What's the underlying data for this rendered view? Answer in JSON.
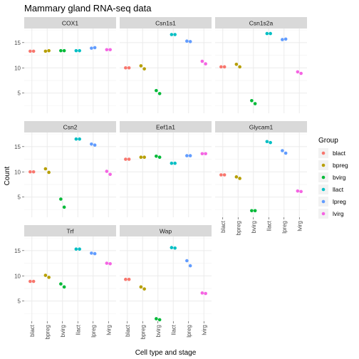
{
  "chart_data": {
    "type": "scatter",
    "title": "Mammary gland RNA-seq data",
    "xlabel": "Cell type and stage",
    "ylabel": "Count",
    "categories": [
      "blact",
      "bpreg",
      "bvirg",
      "llact",
      "lpreg",
      "lvirg"
    ],
    "yticks": [
      5,
      10,
      15
    ],
    "ylim": [
      1.0,
      17.8
    ],
    "grid": true,
    "legend": {
      "title": "Group",
      "position": "right",
      "entries": [
        {
          "name": "blact",
          "color": "#F8766D"
        },
        {
          "name": "bpreg",
          "color": "#B79F00"
        },
        {
          "name": "bvirg",
          "color": "#00BA38"
        },
        {
          "name": "llact",
          "color": "#00BFC4"
        },
        {
          "name": "lpreg",
          "color": "#619CFF"
        },
        {
          "name": "lvirg",
          "color": "#F564E3"
        }
      ]
    },
    "panels": [
      {
        "name": "COX1",
        "points": [
          {
            "g": "blact",
            "y": 13.3
          },
          {
            "g": "blact",
            "y": 13.3
          },
          {
            "g": "bpreg",
            "y": 13.3
          },
          {
            "g": "bpreg",
            "y": 13.4
          },
          {
            "g": "bvirg",
            "y": 13.4
          },
          {
            "g": "bvirg",
            "y": 13.4
          },
          {
            "g": "llact",
            "y": 13.4
          },
          {
            "g": "llact",
            "y": 13.4
          },
          {
            "g": "lpreg",
            "y": 13.9
          },
          {
            "g": "lpreg",
            "y": 14.0
          },
          {
            "g": "lvirg",
            "y": 13.6
          },
          {
            "g": "lvirg",
            "y": 13.6
          }
        ]
      },
      {
        "name": "Csn1s1",
        "points": [
          {
            "g": "blact",
            "y": 10.0
          },
          {
            "g": "blact",
            "y": 10.0
          },
          {
            "g": "bpreg",
            "y": 10.4
          },
          {
            "g": "bpreg",
            "y": 9.8
          },
          {
            "g": "bvirg",
            "y": 5.5
          },
          {
            "g": "bvirg",
            "y": 4.9
          },
          {
            "g": "llact",
            "y": 16.6
          },
          {
            "g": "llact",
            "y": 16.6
          },
          {
            "g": "lpreg",
            "y": 15.3
          },
          {
            "g": "lpreg",
            "y": 15.2
          },
          {
            "g": "lvirg",
            "y": 11.3
          },
          {
            "g": "lvirg",
            "y": 10.8
          }
        ]
      },
      {
        "name": "Csn1s2a",
        "points": [
          {
            "g": "blact",
            "y": 10.2
          },
          {
            "g": "blact",
            "y": 10.2
          },
          {
            "g": "bpreg",
            "y": 10.7
          },
          {
            "g": "bpreg",
            "y": 10.2
          },
          {
            "g": "bvirg",
            "y": 3.5
          },
          {
            "g": "bvirg",
            "y": 2.9
          },
          {
            "g": "llact",
            "y": 16.8
          },
          {
            "g": "llact",
            "y": 16.8
          },
          {
            "g": "lpreg",
            "y": 15.6
          },
          {
            "g": "lpreg",
            "y": 15.7
          },
          {
            "g": "lvirg",
            "y": 9.2
          },
          {
            "g": "lvirg",
            "y": 8.9
          }
        ]
      },
      {
        "name": "Csn2",
        "points": [
          {
            "g": "blact",
            "y": 10.0
          },
          {
            "g": "blact",
            "y": 10.0
          },
          {
            "g": "bpreg",
            "y": 10.6
          },
          {
            "g": "bpreg",
            "y": 9.9
          },
          {
            "g": "bvirg",
            "y": 4.6
          },
          {
            "g": "bvirg",
            "y": 3.0
          },
          {
            "g": "llact",
            "y": 16.5
          },
          {
            "g": "llact",
            "y": 16.5
          },
          {
            "g": "lpreg",
            "y": 15.5
          },
          {
            "g": "lpreg",
            "y": 15.3
          },
          {
            "g": "lvirg",
            "y": 10.1
          },
          {
            "g": "lvirg",
            "y": 9.5
          }
        ]
      },
      {
        "name": "Eef1a1",
        "points": [
          {
            "g": "blact",
            "y": 12.5
          },
          {
            "g": "blact",
            "y": 12.5
          },
          {
            "g": "bpreg",
            "y": 12.9
          },
          {
            "g": "bpreg",
            "y": 12.9
          },
          {
            "g": "bvirg",
            "y": 13.1
          },
          {
            "g": "bvirg",
            "y": 12.9
          },
          {
            "g": "llact",
            "y": 11.7
          },
          {
            "g": "llact",
            "y": 11.7
          },
          {
            "g": "lpreg",
            "y": 13.2
          },
          {
            "g": "lpreg",
            "y": 13.2
          },
          {
            "g": "lvirg",
            "y": 13.6
          },
          {
            "g": "lvirg",
            "y": 13.6
          }
        ]
      },
      {
        "name": "Glycam1",
        "points": [
          {
            "g": "blact",
            "y": 9.4
          },
          {
            "g": "blact",
            "y": 9.4
          },
          {
            "g": "bpreg",
            "y": 9.0
          },
          {
            "g": "bpreg",
            "y": 8.7
          },
          {
            "g": "bvirg",
            "y": 2.3
          },
          {
            "g": "bvirg",
            "y": 2.3
          },
          {
            "g": "llact",
            "y": 16.0
          },
          {
            "g": "llact",
            "y": 15.8
          },
          {
            "g": "lpreg",
            "y": 14.2
          },
          {
            "g": "lpreg",
            "y": 13.7
          },
          {
            "g": "lvirg",
            "y": 6.2
          },
          {
            "g": "lvirg",
            "y": 6.1
          }
        ]
      },
      {
        "name": "Trf",
        "points": [
          {
            "g": "blact",
            "y": 8.9
          },
          {
            "g": "blact",
            "y": 8.9
          },
          {
            "g": "bpreg",
            "y": 10.1
          },
          {
            "g": "bpreg",
            "y": 9.7
          },
          {
            "g": "bvirg",
            "y": 8.4
          },
          {
            "g": "bvirg",
            "y": 7.8
          },
          {
            "g": "llact",
            "y": 15.3
          },
          {
            "g": "llact",
            "y": 15.3
          },
          {
            "g": "lpreg",
            "y": 14.5
          },
          {
            "g": "lpreg",
            "y": 14.4
          },
          {
            "g": "lvirg",
            "y": 12.5
          },
          {
            "g": "lvirg",
            "y": 12.4
          }
        ]
      },
      {
        "name": "Wap",
        "points": [
          {
            "g": "blact",
            "y": 9.3
          },
          {
            "g": "blact",
            "y": 9.3
          },
          {
            "g": "bpreg",
            "y": 7.8
          },
          {
            "g": "bpreg",
            "y": 7.4
          },
          {
            "g": "bvirg",
            "y": 1.5
          },
          {
            "g": "bvirg",
            "y": 1.3
          },
          {
            "g": "llact",
            "y": 15.6
          },
          {
            "g": "llact",
            "y": 15.5
          },
          {
            "g": "lpreg",
            "y": 13.0
          },
          {
            "g": "lpreg",
            "y": 12.0
          },
          {
            "g": "lvirg",
            "y": 6.6
          },
          {
            "g": "lvirg",
            "y": 6.5
          }
        ]
      }
    ]
  }
}
